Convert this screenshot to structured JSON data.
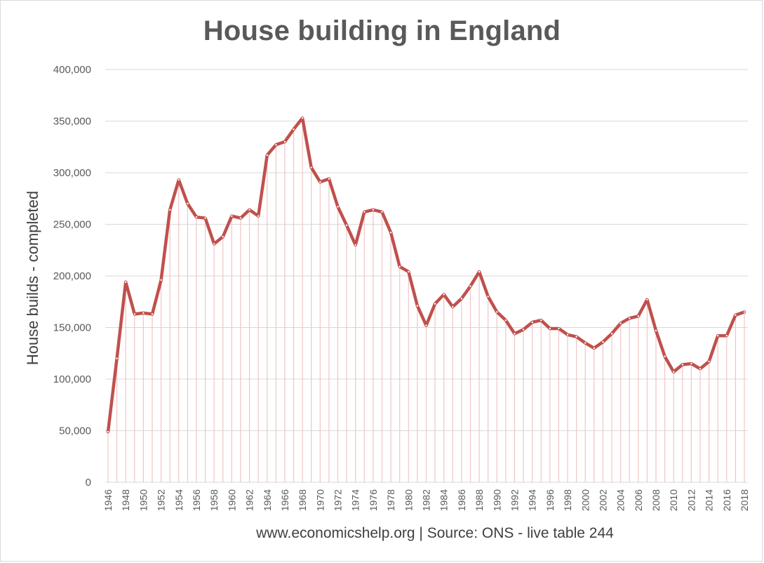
{
  "chart_data": {
    "type": "line",
    "title": "House building in England",
    "ylabel": "House builds - completed",
    "xlabel": "",
    "footer": "www.economicshelp.org  | Source: ONS - live table 244",
    "ylim": [
      0,
      400000
    ],
    "yticks": [
      0,
      50000,
      100000,
      150000,
      200000,
      250000,
      300000,
      350000,
      400000
    ],
    "ytick_labels": [
      "0",
      "50,000",
      "100,000",
      "150,000",
      "200,000",
      "250,000",
      "300,000",
      "350,000",
      "400,000"
    ],
    "x_tick_labels": [
      "1946",
      "1948",
      "1950",
      "1952",
      "1954",
      "1956",
      "1958",
      "1960",
      "1962",
      "1964",
      "1966",
      "1968",
      "1970",
      "1972",
      "1974",
      "1976",
      "1978",
      "1980",
      "1982",
      "1984",
      "1986",
      "1988",
      "1990",
      "1992",
      "1994",
      "1996",
      "1998",
      "2000",
      "2002",
      "2004",
      "2006",
      "2008",
      "2010",
      "2012",
      "2014",
      "2016",
      "2018"
    ],
    "grid": true,
    "drop_lines": true,
    "line_color": "#c0504d",
    "drop_line_color": "#f2c4c4",
    "grid_color": "#d9d9d9",
    "series": [
      {
        "x": [
          1946,
          1947,
          1948,
          1949,
          1950,
          1951,
          1952,
          1953,
          1954,
          1955,
          1956,
          1957,
          1958,
          1959,
          1960,
          1961,
          1962,
          1963,
          1964,
          1965,
          1966,
          1967,
          1968,
          1969,
          1970,
          1971,
          1972,
          1973,
          1974,
          1975,
          1976,
          1977,
          1978,
          1979,
          1980,
          1981,
          1982,
          1983,
          1984,
          1985,
          1986,
          1987,
          1988,
          1989,
          1990,
          1991,
          1992,
          1993,
          1994,
          1995,
          1996,
          1997,
          1998,
          1999,
          2000,
          2001,
          2002,
          2003,
          2004,
          2005,
          2006,
          2007,
          2008,
          2009,
          2010,
          2011,
          2012,
          2013,
          2014,
          2015,
          2016,
          2017,
          2018
        ],
        "values": [
          49000,
          120000,
          194000,
          163000,
          164000,
          163000,
          196000,
          264000,
          293000,
          270000,
          257000,
          256000,
          231000,
          238000,
          258000,
          256000,
          264000,
          258000,
          317000,
          327000,
          330000,
          342000,
          353000,
          305000,
          291000,
          294000,
          267000,
          249000,
          230000,
          262000,
          264000,
          262000,
          242000,
          209000,
          204000,
          171000,
          152000,
          173000,
          182000,
          170000,
          178000,
          190000,
          204000,
          180000,
          165000,
          157000,
          144000,
          148000,
          155000,
          157000,
          149000,
          149000,
          143000,
          141000,
          135000,
          130000,
          136000,
          144000,
          154000,
          159000,
          161000,
          177000,
          147000,
          122000,
          107000,
          114000,
          115000,
          110000,
          117000,
          142000,
          142000,
          162000,
          165000
        ]
      }
    ]
  }
}
